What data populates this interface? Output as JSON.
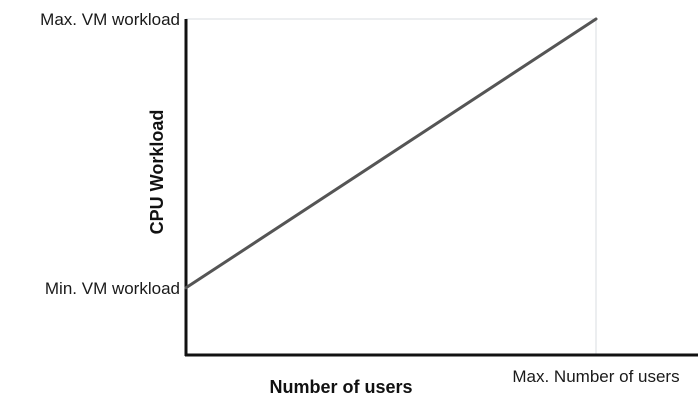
{
  "chart_data": {
    "type": "line",
    "title": "",
    "xlabel": "Number of users",
    "ylabel": "CPU Workload",
    "x_tick_labels": [
      "Max. Number of users"
    ],
    "y_tick_labels": [
      "Max. VM workload",
      "Min. VM workload"
    ],
    "xlim": [
      0,
      1
    ],
    "ylim": [
      0,
      1
    ],
    "grid": false,
    "series": [
      {
        "x": [
          0,
          1
        ],
        "y": [
          0.2,
          1
        ]
      }
    ],
    "colors": {
      "line": "#555555",
      "axis": "#111111",
      "guide": "#d8dde2"
    }
  }
}
